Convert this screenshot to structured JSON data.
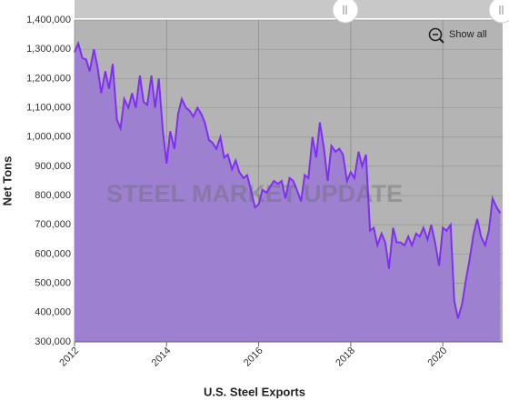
{
  "chart_data": {
    "type": "area",
    "title": "U.S. Steel Exports",
    "ylabel": "Net Tons",
    "watermark": "STEEL MARKET UPDATE",
    "show_all": "Show all",
    "color": "#9d80cf",
    "line_color": "#7f2ff0",
    "background": "#b4b4b4",
    "grid": true,
    "x": [
      2012.0,
      2012.08,
      2012.17,
      2012.25,
      2012.33,
      2012.42,
      2012.5,
      2012.58,
      2012.67,
      2012.75,
      2012.83,
      2012.92,
      2013.0,
      2013.08,
      2013.17,
      2013.25,
      2013.33,
      2013.42,
      2013.5,
      2013.58,
      2013.67,
      2013.75,
      2013.83,
      2013.92,
      2014.0,
      2014.08,
      2014.17,
      2014.25,
      2014.33,
      2014.42,
      2014.5,
      2014.58,
      2014.67,
      2014.75,
      2014.83,
      2014.92,
      2015.0,
      2015.08,
      2015.17,
      2015.25,
      2015.33,
      2015.42,
      2015.5,
      2015.58,
      2015.67,
      2015.75,
      2015.83,
      2015.92,
      2016.0,
      2016.08,
      2016.17,
      2016.25,
      2016.33,
      2016.42,
      2016.5,
      2016.58,
      2016.67,
      2016.75,
      2016.83,
      2016.92,
      2017.0,
      2017.08,
      2017.17,
      2017.25,
      2017.33,
      2017.42,
      2017.5,
      2017.58,
      2017.67,
      2017.75,
      2017.83,
      2017.92,
      2018.0,
      2018.08,
      2018.17,
      2018.25,
      2018.33,
      2018.42,
      2018.5,
      2018.58,
      2018.67,
      2018.75,
      2018.83,
      2018.92,
      2019.0,
      2019.08,
      2019.17,
      2019.25,
      2019.33,
      2019.42,
      2019.5,
      2019.58,
      2019.67,
      2019.75,
      2019.83,
      2019.92,
      2020.0,
      2020.08,
      2020.17,
      2020.25,
      2020.33,
      2020.42,
      2020.5,
      2020.58,
      2020.67,
      2020.75,
      2020.83,
      2020.92,
      2021.0,
      2021.08,
      2021.17,
      2021.25
    ],
    "values": [
      1290000,
      1320000,
      1270000,
      1265000,
      1225000,
      1300000,
      1240000,
      1150000,
      1225000,
      1165000,
      1250000,
      1060000,
      1030000,
      1130000,
      1100000,
      1150000,
      1100000,
      1210000,
      1120000,
      1110000,
      1210000,
      1100000,
      1200000,
      1020000,
      910000,
      1020000,
      960000,
      1080000,
      1130000,
      1100000,
      1090000,
      1070000,
      1100000,
      1080000,
      1050000,
      990000,
      980000,
      960000,
      1000000,
      930000,
      940000,
      890000,
      920000,
      880000,
      860000,
      870000,
      820000,
      760000,
      770000,
      820000,
      810000,
      830000,
      850000,
      840000,
      850000,
      790000,
      860000,
      850000,
      820000,
      780000,
      870000,
      860000,
      1000000,
      930000,
      1050000,
      960000,
      850000,
      970000,
      950000,
      960000,
      940000,
      850000,
      880000,
      860000,
      950000,
      900000,
      940000,
      680000,
      690000,
      630000,
      670000,
      640000,
      550000,
      690000,
      640000,
      640000,
      630000,
      660000,
      630000,
      670000,
      660000,
      690000,
      650000,
      700000,
      640000,
      560000,
      690000,
      680000,
      700000,
      440000,
      380000,
      430000,
      510000,
      580000,
      670000,
      720000,
      660000,
      630000,
      680000,
      790000,
      760000,
      740000
    ],
    "xlim": [
      2012,
      2021.3
    ],
    "ylim": [
      300000,
      1400000
    ],
    "xticks": [
      2012,
      2014,
      2016,
      2018,
      2020
    ],
    "yticks": [
      {
        "value": 300000,
        "label": "300,000"
      },
      {
        "value": 400000,
        "label": "400,000"
      },
      {
        "value": 500000,
        "label": "500,000"
      },
      {
        "value": 600000,
        "label": "600,000"
      },
      {
        "value": 700000,
        "label": "700,000"
      },
      {
        "value": 800000,
        "label": "800,000"
      },
      {
        "value": 900000,
        "label": "900,000"
      },
      {
        "value": 1000000,
        "label": "1,000,000"
      },
      {
        "value": 1100000,
        "label": "1,100,000"
      },
      {
        "value": 1200000,
        "label": "1,200,000"
      },
      {
        "value": 1300000,
        "label": "1,300,000"
      },
      {
        "value": 1400000,
        "label": "1,400,000"
      }
    ]
  }
}
